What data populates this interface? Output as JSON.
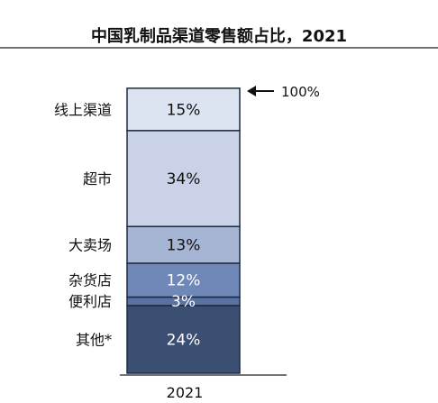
{
  "chart_data": {
    "type": "bar",
    "stacked": true,
    "title": "中国乳制品渠道零售额占比，2021",
    "categories": [
      "2021"
    ],
    "ylim": [
      0,
      100
    ],
    "total_label": "100%",
    "series": [
      {
        "name": "其他*",
        "values": [
          24
        ],
        "label": "24%",
        "color": "#3b4f73"
      },
      {
        "name": "便利店",
        "values": [
          3
        ],
        "label": "3%",
        "color": "#5872a3"
      },
      {
        "name": "杂货店",
        "values": [
          12
        ],
        "label": "12%",
        "color": "#6f88b8"
      },
      {
        "name": "大卖场",
        "values": [
          13
        ],
        "label": "13%",
        "color": "#a6b5d3"
      },
      {
        "name": "超市",
        "values": [
          34
        ],
        "label": "34%",
        "color": "#c9d2e6"
      },
      {
        "name": "线上渠道",
        "values": [
          15
        ],
        "label": "15%",
        "color": "#dde4f1"
      }
    ]
  }
}
